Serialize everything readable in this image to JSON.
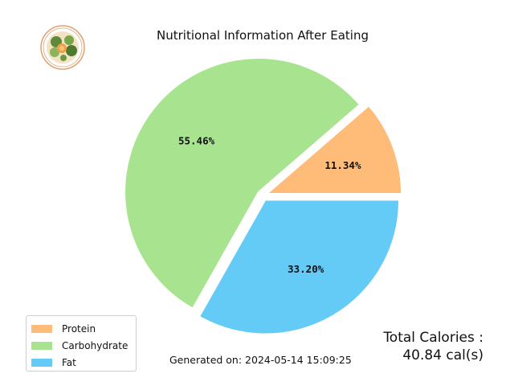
{
  "chart_data": {
    "type": "pie",
    "title": "Nutritional Information After Eating",
    "categories": [
      "Protein",
      "Carbohydrate",
      "Fat"
    ],
    "values": [
      11.34,
      55.46,
      33.2
    ],
    "labels": [
      "11.34%",
      "55.46%",
      "33.20%"
    ],
    "colors": [
      "#ffbb78",
      "#a8e490",
      "#64cbf7"
    ],
    "start_angle_deg": 0,
    "explode": true,
    "legend_position": "lower-left"
  },
  "legend": {
    "items": [
      {
        "label": "Protein",
        "color": "#ffbb78"
      },
      {
        "label": "Carbohydrate",
        "color": "#a8e490"
      },
      {
        "label": "Fat",
        "color": "#64cbf7"
      }
    ]
  },
  "footer": {
    "generated": "Generated on: 2024-05-14 15:09:25"
  },
  "calories": {
    "label": "Total Calories :",
    "value": "40.84 cal(s)"
  },
  "logo": {
    "icon": "salad-bowl-icon",
    "ring_color": "#e0a070"
  }
}
